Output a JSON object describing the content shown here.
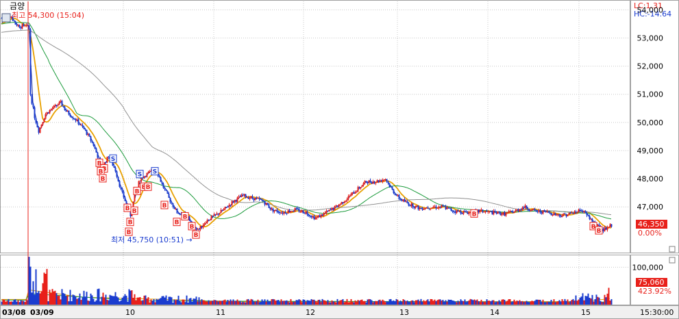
{
  "header": {
    "title": "금양",
    "high_label": "최고 54,300 (15:04)",
    "low_label": "최저 45,750 (10:51) →",
    "lc": "LC:1.31",
    "hc": "HC:-14.64"
  },
  "current": {
    "price": "46,350",
    "change": "0.00%",
    "volume": "75,060",
    "volume_pct": "423.92%"
  },
  "footer": {
    "clock": "15:30:00"
  },
  "colors": {
    "up": "#e8201a",
    "down": "#1a3ccf",
    "ma_fast": "#2030a0",
    "ma_short": "#e8a000",
    "ma_mid": "#1a9a3a",
    "ma_long": "#909090",
    "grid": "#c8c8c8",
    "price_tag": "#e8201a"
  },
  "chart_data": [
    {
      "type": "candlestick",
      "title": "금양",
      "x": [
        "03/08",
        "03/09",
        "10",
        "11",
        "12",
        "13",
        "14",
        "15"
      ],
      "ylim": [
        45400,
        54300
      ],
      "y_ticks": [
        "54,000",
        "53,000",
        "52,000",
        "51,000",
        "50,000",
        "49,000",
        "48,000",
        "47,000"
      ],
      "close_series": [
        {
          "x": "03/08",
          "y": 53700
        },
        {
          "x": "03/08",
          "y": 53400
        },
        {
          "x": "03/09",
          "y": 53500
        },
        {
          "x": "03/09",
          "y": 50800
        },
        {
          "x": "03/09",
          "y": 49900
        },
        {
          "x": "03/09",
          "y": 50600
        },
        {
          "x": "03/09",
          "y": 50300
        },
        {
          "x": "03/09",
          "y": 49600
        },
        {
          "x": "03/09",
          "y": 48600
        },
        {
          "x": "10",
          "y": 48100
        },
        {
          "x": "10",
          "y": 47200
        },
        {
          "x": "10",
          "y": 46700
        },
        {
          "x": "10",
          "y": 48100
        },
        {
          "x": "10",
          "y": 48300
        },
        {
          "x": "10",
          "y": 47700
        },
        {
          "x": "10",
          "y": 47000
        },
        {
          "x": "10",
          "y": 46600
        },
        {
          "x": "10",
          "y": 46200
        },
        {
          "x": "11",
          "y": 46200
        },
        {
          "x": "11",
          "y": 46700
        },
        {
          "x": "11",
          "y": 47300
        },
        {
          "x": "11",
          "y": 47300
        },
        {
          "x": "11",
          "y": 46900
        },
        {
          "x": "12",
          "y": 46900
        },
        {
          "x": "12",
          "y": 46900
        },
        {
          "x": "12",
          "y": 46700
        },
        {
          "x": "12",
          "y": 47000
        },
        {
          "x": "12",
          "y": 47600
        },
        {
          "x": "12",
          "y": 48000
        },
        {
          "x": "13",
          "y": 48000
        },
        {
          "x": "13",
          "y": 47200
        },
        {
          "x": "13",
          "y": 47000
        },
        {
          "x": "13",
          "y": 46950
        },
        {
          "x": "13",
          "y": 46850
        },
        {
          "x": "14",
          "y": 46800
        },
        {
          "x": "14",
          "y": 46900
        },
        {
          "x": "14",
          "y": 47000
        },
        {
          "x": "14",
          "y": 46700
        },
        {
          "x": "14",
          "y": 46800
        },
        {
          "x": "15",
          "y": 46900
        },
        {
          "x": "15",
          "y": 46200
        },
        {
          "x": "15",
          "y": 46350
        }
      ],
      "high": 54300,
      "low": 45750,
      "last": 46350
    },
    {
      "type": "bar",
      "title": "volume",
      "ylim": [
        0,
        130000
      ],
      "y_ticks": [
        "100,000"
      ],
      "values_sample": [
        20000,
        130000,
        90000,
        60000,
        40000,
        70000,
        20000,
        15000,
        10000,
        10000,
        20000,
        60000
      ]
    }
  ],
  "markers": {
    "buy": "B",
    "sell": "S"
  },
  "y_labels": [
    "54,000",
    "53,000",
    "52,000",
    "51,000",
    "50,000",
    "49,000",
    "48,000",
    "47,000"
  ],
  "vol_labels": [
    "100,000"
  ],
  "x_labels": [
    "03/08",
    "03/09",
    "10",
    "11",
    "12",
    "13",
    "14",
    "15"
  ]
}
